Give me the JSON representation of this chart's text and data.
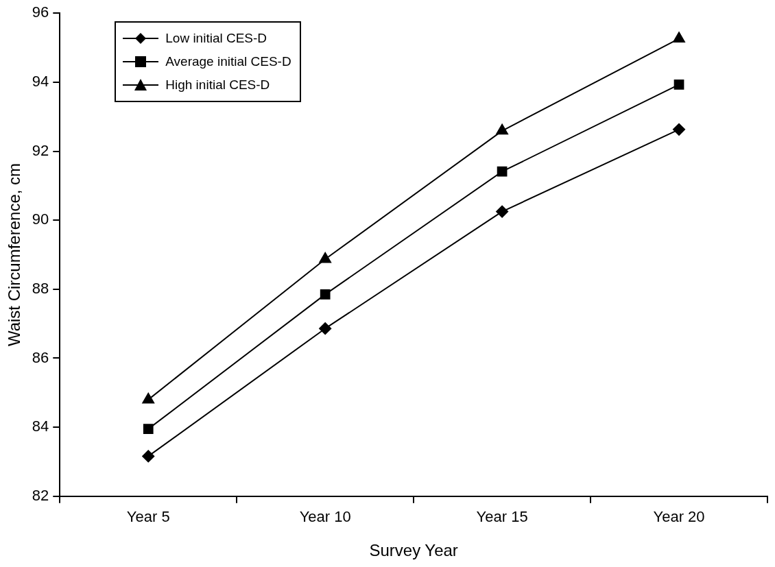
{
  "chart_data": {
    "type": "line",
    "xlabel": "Survey Year",
    "ylabel": "Waist Circumference, cm",
    "categories": [
      "Year 5",
      "Year 10",
      "Year 15",
      "Year 20"
    ],
    "series": [
      {
        "name": "Low initial CES-D",
        "color": "#000000",
        "marker": "diamond",
        "values": [
          83.16,
          86.86,
          90.25,
          92.63
        ]
      },
      {
        "name": "Average initial CES-D",
        "color": "#000000",
        "marker": "square",
        "values": [
          83.95,
          87.85,
          91.41,
          93.93
        ]
      },
      {
        "name": "High initial CES-D",
        "color": "#000000",
        "marker": "triangle",
        "values": [
          84.8,
          88.87,
          92.59,
          95.26
        ]
      }
    ],
    "ylim": [
      82,
      96
    ],
    "yticks": [
      82,
      84,
      86,
      88,
      90,
      92,
      94,
      96
    ],
    "grid": false,
    "legend": "top left",
    "line_style": "solid"
  }
}
